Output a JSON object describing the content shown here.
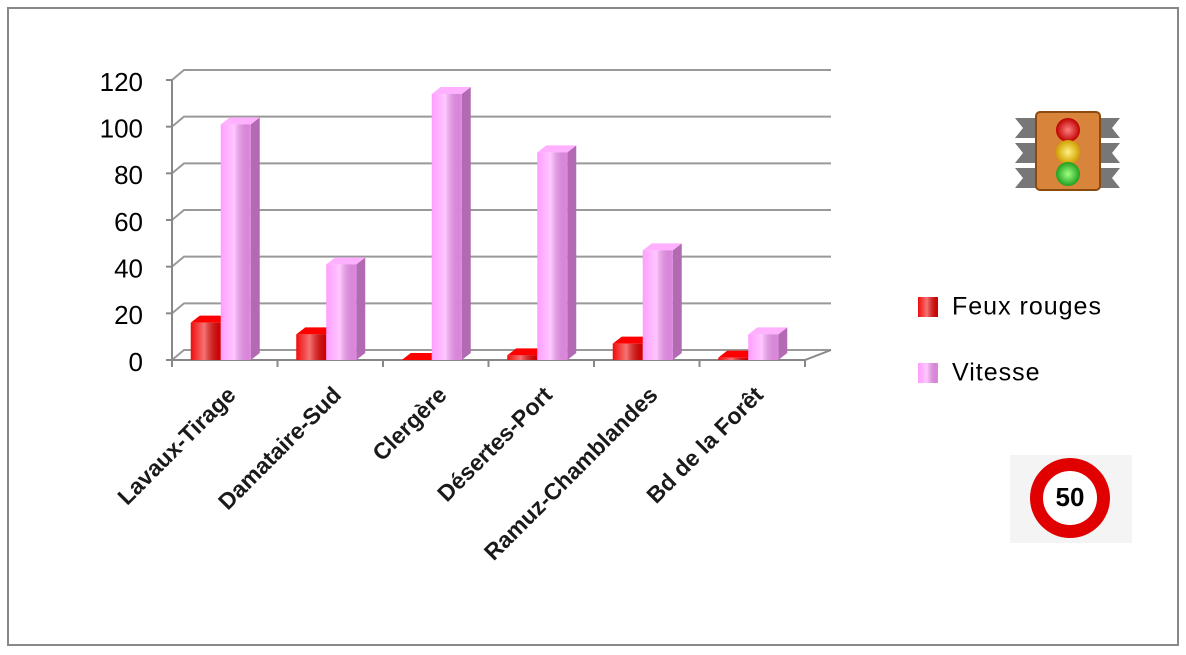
{
  "chart_data": {
    "type": "bar3d",
    "categories": [
      "Lavaux-Tirage",
      "Damataire-Sud",
      "Clergère",
      "Désertes-Port",
      "Ramuz-Chamblandes",
      "Bd de la Forêt"
    ],
    "series": [
      {
        "name": "Feux rouges",
        "color": "#ee0000",
        "values": [
          16,
          11,
          0,
          2,
          7,
          1
        ]
      },
      {
        "name": "Vitesse",
        "color": "#ff99ff",
        "values": [
          101,
          41,
          114,
          89,
          47,
          11
        ]
      }
    ],
    "ylim": [
      0,
      120
    ],
    "yticks": [
      0,
      20,
      40,
      60,
      80,
      100,
      120
    ],
    "grid": true,
    "legend": "right",
    "speed_limit_sign": "50"
  }
}
